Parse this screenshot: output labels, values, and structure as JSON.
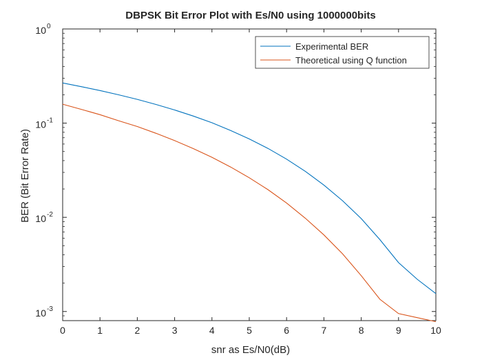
{
  "chart_data": {
    "type": "line",
    "title": "DBPSK Bit Error Plot with Es/N0 using 1000000bits",
    "xlabel": "snr as Es/N0(dB)",
    "ylabel": "BER (Bit Error Rate)",
    "xlim": [
      0,
      10
    ],
    "ylim": [
      0.0008,
      1
    ],
    "yscale": "log",
    "grid": false,
    "legend_position": "top-right",
    "xticks": [
      {
        "value": 0,
        "label": "0"
      },
      {
        "value": 1,
        "label": "1"
      },
      {
        "value": 2,
        "label": "2"
      },
      {
        "value": 3,
        "label": "3"
      },
      {
        "value": 4,
        "label": "4"
      },
      {
        "value": 5,
        "label": "5"
      },
      {
        "value": 6,
        "label": "6"
      },
      {
        "value": 7,
        "label": "7"
      },
      {
        "value": 8,
        "label": "8"
      },
      {
        "value": 9,
        "label": "9"
      },
      {
        "value": 10,
        "label": "10"
      }
    ],
    "yticks": [
      {
        "value": 0.001,
        "base": "10",
        "exp": "-3"
      },
      {
        "value": 0.01,
        "base": "10",
        "exp": "-2"
      },
      {
        "value": 0.1,
        "base": "10",
        "exp": "-1"
      },
      {
        "value": 1,
        "base": "10",
        "exp": "0"
      }
    ],
    "x": [
      0,
      0.5,
      1,
      1.5,
      2,
      2.5,
      3,
      3.5,
      4,
      4.5,
      5,
      5.5,
      6,
      6.5,
      7,
      7.5,
      8,
      8.5,
      9,
      9.5,
      10
    ],
    "series": [
      {
        "name": "Experimental BER",
        "color": "#0072bd",
        "values": [
          0.267,
          0.244,
          0.222,
          0.2,
          0.179,
          0.158,
          0.138,
          0.119,
          0.101,
          0.0836,
          0.068,
          0.0539,
          0.0415,
          0.0308,
          0.022,
          0.015,
          0.0097,
          0.0058,
          0.0033,
          0.0022,
          0.00155
        ]
      },
      {
        "name": "Theoretical using Q function",
        "color": "#d95319",
        "values": [
          0.159,
          0.14,
          0.123,
          0.106,
          0.092,
          0.0781,
          0.0653,
          0.0537,
          0.0434,
          0.0342,
          0.0263,
          0.0197,
          0.0142,
          0.0098,
          0.0065,
          0.0041,
          0.0024,
          0.00135,
          0.00095,
          0.00086,
          0.00078
        ]
      }
    ]
  }
}
